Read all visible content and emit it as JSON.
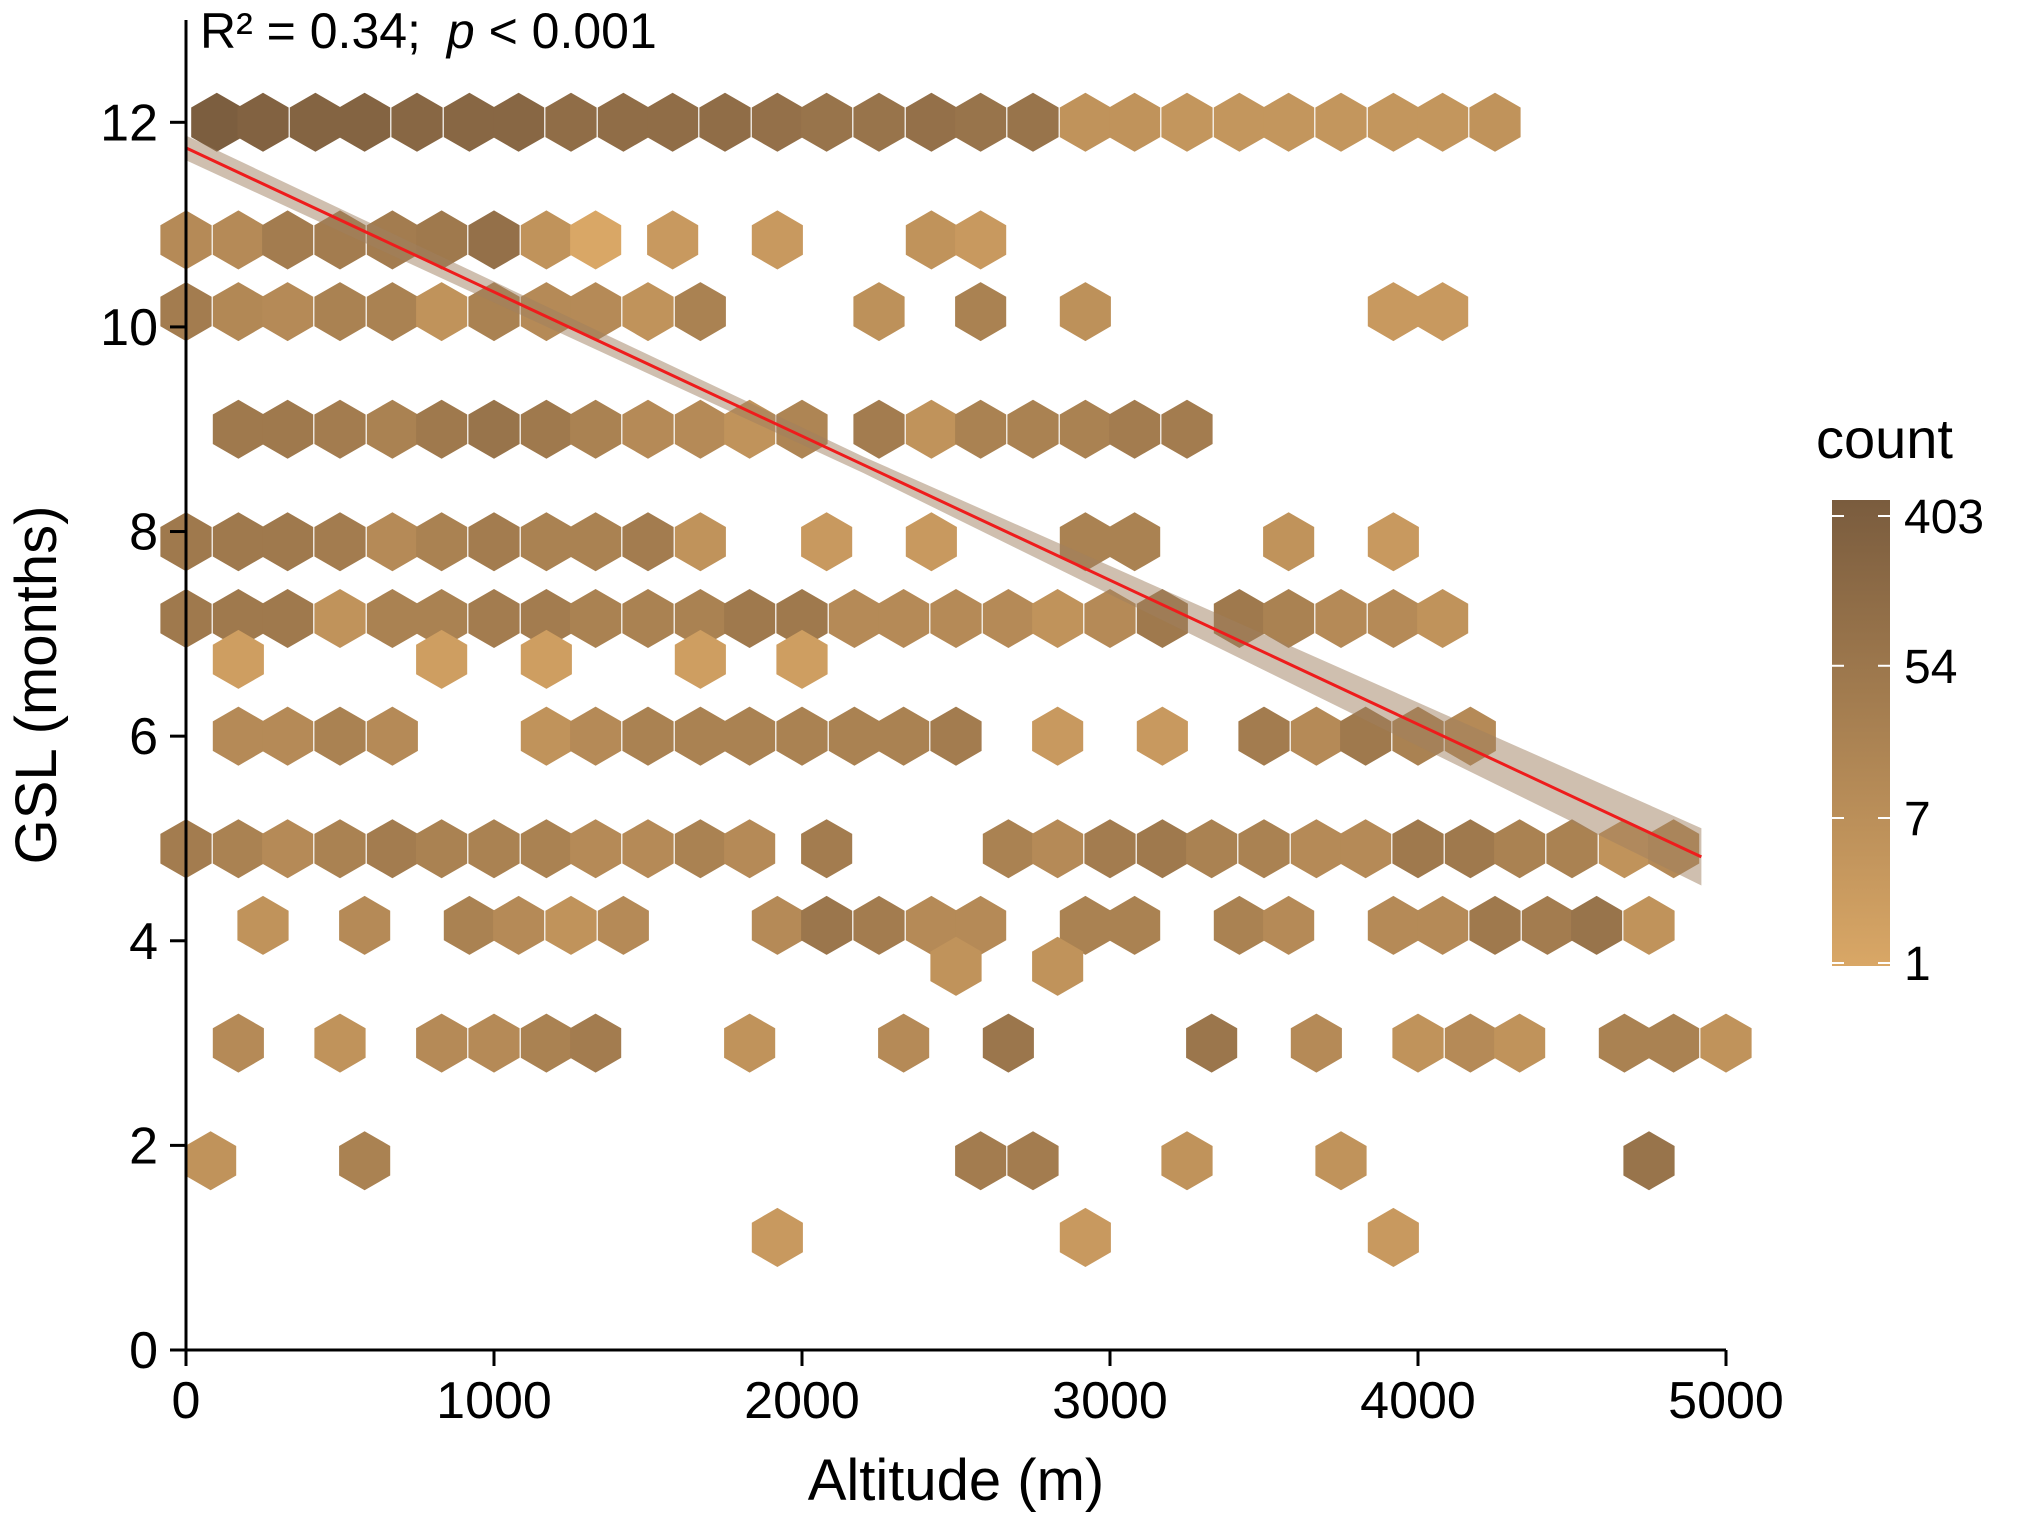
{
  "chart_data": {
    "type": "hexbin",
    "title": "",
    "annotation": {
      "r_squared": "R² = 0.34;",
      "p_label": "p",
      "p_value": " < 0.001"
    },
    "xlabel": "Altitude (m)",
    "ylabel": "GSL (months)",
    "xlim": [
      0,
      5000
    ],
    "ylim": [
      0,
      13
    ],
    "xticks": [
      "0",
      "1000",
      "2000",
      "3000",
      "4000",
      "5000"
    ],
    "yticks": [
      "0",
      "2",
      "4",
      "6",
      "8",
      "10",
      "12"
    ],
    "xtick_values": [
      0,
      1000,
      2000,
      3000,
      4000,
      5000
    ],
    "ytick_values": [
      0,
      2,
      4,
      6,
      8,
      10,
      12
    ],
    "grid": false,
    "legend": {
      "title": "count",
      "position": "right",
      "ticks": [
        "403",
        "54",
        "7",
        "1"
      ],
      "tick_values": [
        403,
        54,
        7,
        1
      ],
      "color_low": "#d9a766",
      "color_high": "#7a5c3e",
      "scale": "log"
    },
    "fit_line": {
      "color": "#ee1c1c",
      "x": [
        0,
        4920
      ],
      "y": [
        11.75,
        4.82
      ],
      "ci_color": "#a08060",
      "ci_halfwidth_low": 0.12,
      "ci_halfwidth_high": 0.28
    },
    "rows": [
      {
        "y": 12.0,
        "x": [
          100,
          250,
          420,
          580,
          750,
          920,
          1080,
          1250,
          1420,
          1580,
          1750,
          1920,
          2080,
          2250,
          2420,
          2580,
          2750,
          2920,
          3080,
          3250,
          3420,
          3580,
          3750,
          3920,
          4080,
          4250
        ],
        "c": [
          350,
          250,
          220,
          220,
          170,
          170,
          170,
          100,
          100,
          100,
          100,
          80,
          60,
          60,
          80,
          60,
          60,
          5,
          5,
          4,
          4,
          4,
          4,
          4,
          4,
          5
        ]
      },
      {
        "y": 10.85,
        "x": [
          0,
          170,
          330,
          500,
          670,
          830,
          1000,
          1170,
          1330,
          1580,
          1920,
          2420,
          2580
        ],
        "c": [
          10,
          10,
          30,
          30,
          30,
          40,
          80,
          5,
          0,
          3,
          3,
          5,
          3
        ]
      },
      {
        "y": 10.15,
        "x": [
          0,
          170,
          330,
          500,
          670,
          830,
          1000,
          1170,
          1330,
          1500,
          1670,
          2250,
          2580,
          2920,
          3920,
          4080
        ],
        "c": [
          30,
          12,
          10,
          20,
          20,
          5,
          20,
          10,
          10,
          5,
          20,
          6,
          20,
          6,
          3,
          3
        ]
      },
      {
        "y": 9.0,
        "x": [
          170,
          330,
          500,
          670,
          830,
          1000,
          1170,
          1330,
          1500,
          1670,
          1830,
          2000,
          2250,
          2420,
          2580,
          2750,
          2920,
          3080,
          3250
        ],
        "c": [
          40,
          40,
          30,
          20,
          40,
          60,
          40,
          20,
          10,
          10,
          5,
          15,
          30,
          5,
          20,
          20,
          20,
          30,
          30
        ]
      },
      {
        "y": 7.9,
        "x": [
          0,
          170,
          330,
          500,
          670,
          830,
          1000,
          1170,
          1330,
          1500,
          1670,
          2080,
          2420,
          2920,
          3080,
          3580,
          3920
        ],
        "c": [
          40,
          40,
          40,
          30,
          10,
          20,
          30,
          20,
          20,
          30,
          5,
          3,
          3,
          20,
          20,
          5,
          3
        ]
      },
      {
        "y": 7.15,
        "x": [
          0,
          170,
          330,
          500,
          670,
          830,
          1000,
          1170,
          1330,
          1500,
          1670,
          1830,
          2000,
          2170,
          2330,
          2500,
          2670,
          2830,
          3000,
          3170,
          3420,
          3580,
          3750,
          3920,
          4080
        ],
        "c": [
          40,
          40,
          40,
          5,
          20,
          20,
          30,
          30,
          20,
          20,
          20,
          40,
          40,
          10,
          10,
          10,
          10,
          5,
          10,
          40,
          40,
          20,
          10,
          10,
          5
        ]
      },
      {
        "y": 6.75,
        "x": [
          170,
          830,
          1170,
          1670,
          2000
        ],
        "c": [
          2,
          2,
          2,
          2,
          2
        ]
      },
      {
        "y": 6.0,
        "x": [
          170,
          330,
          500,
          670,
          1170,
          1330,
          1500,
          1670,
          1830,
          2000,
          2170,
          2330,
          2500,
          2830,
          3170,
          3500,
          3670,
          3830,
          4000,
          4170
        ],
        "c": [
          10,
          10,
          20,
          10,
          5,
          10,
          20,
          20,
          20,
          20,
          20,
          20,
          30,
          3,
          3,
          30,
          10,
          40,
          20,
          10
        ]
      },
      {
        "y": 4.9,
        "x": [
          0,
          170,
          330,
          500,
          670,
          830,
          1000,
          1170,
          1330,
          1500,
          1670,
          1830,
          2080,
          2670,
          2830,
          3000,
          3170,
          3330,
          3500,
          3670,
          3830,
          4000,
          4170,
          4330,
          4500,
          4670,
          4830
        ],
        "c": [
          30,
          20,
          10,
          20,
          30,
          20,
          20,
          20,
          10,
          10,
          20,
          10,
          30,
          20,
          10,
          30,
          40,
          20,
          20,
          10,
          10,
          40,
          40,
          20,
          20,
          5,
          10
        ]
      },
      {
        "y": 4.15,
        "x": [
          250,
          580,
          920,
          1080,
          1250,
          1420,
          1920,
          2080,
          2250,
          2420,
          2580,
          2920,
          3080,
          3420,
          3580,
          3920,
          4080,
          4250,
          4420,
          4580,
          4750
        ],
        "c": [
          5,
          10,
          20,
          10,
          5,
          10,
          10,
          50,
          30,
          10,
          10,
          20,
          20,
          20,
          10,
          10,
          10,
          40,
          30,
          60,
          5
        ]
      },
      {
        "y": 3.75,
        "x": [
          2500,
          2830
        ],
        "c": [
          5,
          5
        ]
      },
      {
        "y": 3.0,
        "x": [
          170,
          500,
          830,
          1000,
          1170,
          1330,
          1830,
          2330,
          2670,
          3330,
          3670,
          4000,
          4170,
          4330,
          4670,
          4830,
          5000
        ],
        "c": [
          10,
          5,
          10,
          10,
          20,
          30,
          5,
          10,
          50,
          50,
          10,
          5,
          10,
          5,
          20,
          20,
          5
        ]
      },
      {
        "y": 1.85,
        "x": [
          80,
          580,
          2580,
          2750,
          3250,
          3750,
          4750
        ],
        "c": [
          5,
          20,
          30,
          30,
          5,
          5,
          60
        ]
      },
      {
        "y": 1.1,
        "x": [
          1920,
          2920,
          3920
        ],
        "c": [
          3,
          3,
          3
        ]
      }
    ]
  }
}
